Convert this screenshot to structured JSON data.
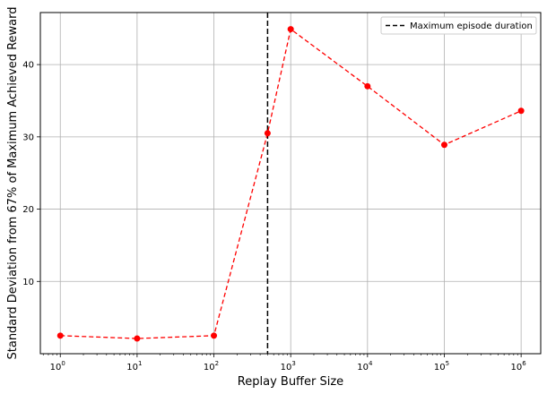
{
  "chart_data": {
    "type": "line",
    "title": "",
    "xlabel": "Replay Buffer Size",
    "ylabel": "Standard Deviation from 67% of Maximum Achieved Reward",
    "x_scale": "log",
    "xlim": [
      0.55,
      1800000.0
    ],
    "ylim": [
      0,
      47.2
    ],
    "x_ticks": [
      1,
      10,
      100,
      1000,
      10000,
      100000,
      1000000
    ],
    "x_tick_labels": [
      {
        "base": "10",
        "exp": "0"
      },
      {
        "base": "10",
        "exp": "1"
      },
      {
        "base": "10",
        "exp": "2"
      },
      {
        "base": "10",
        "exp": "3"
      },
      {
        "base": "10",
        "exp": "4"
      },
      {
        "base": "10",
        "exp": "5"
      },
      {
        "base": "10",
        "exp": "6"
      }
    ],
    "y_ticks": [
      10,
      20,
      30,
      40
    ],
    "y_tick_labels": [
      "10",
      "20",
      "30",
      "40"
    ],
    "grid": true,
    "series": [
      {
        "x": [
          1,
          10,
          100,
          500,
          1000,
          10000,
          100000,
          1000000
        ],
        "y": [
          2.5,
          2.1,
          2.5,
          30.5,
          44.9,
          37.0,
          28.9,
          33.6
        ],
        "color": "#ff0000",
        "linestyle": "dashed",
        "marker": "circle"
      }
    ],
    "vline": {
      "x": 500,
      "color": "#000000",
      "linestyle": "dashed",
      "label": "Maximum episode duration"
    },
    "legend": {
      "position": "top-right",
      "entries": [
        "Maximum episode duration"
      ]
    }
  }
}
